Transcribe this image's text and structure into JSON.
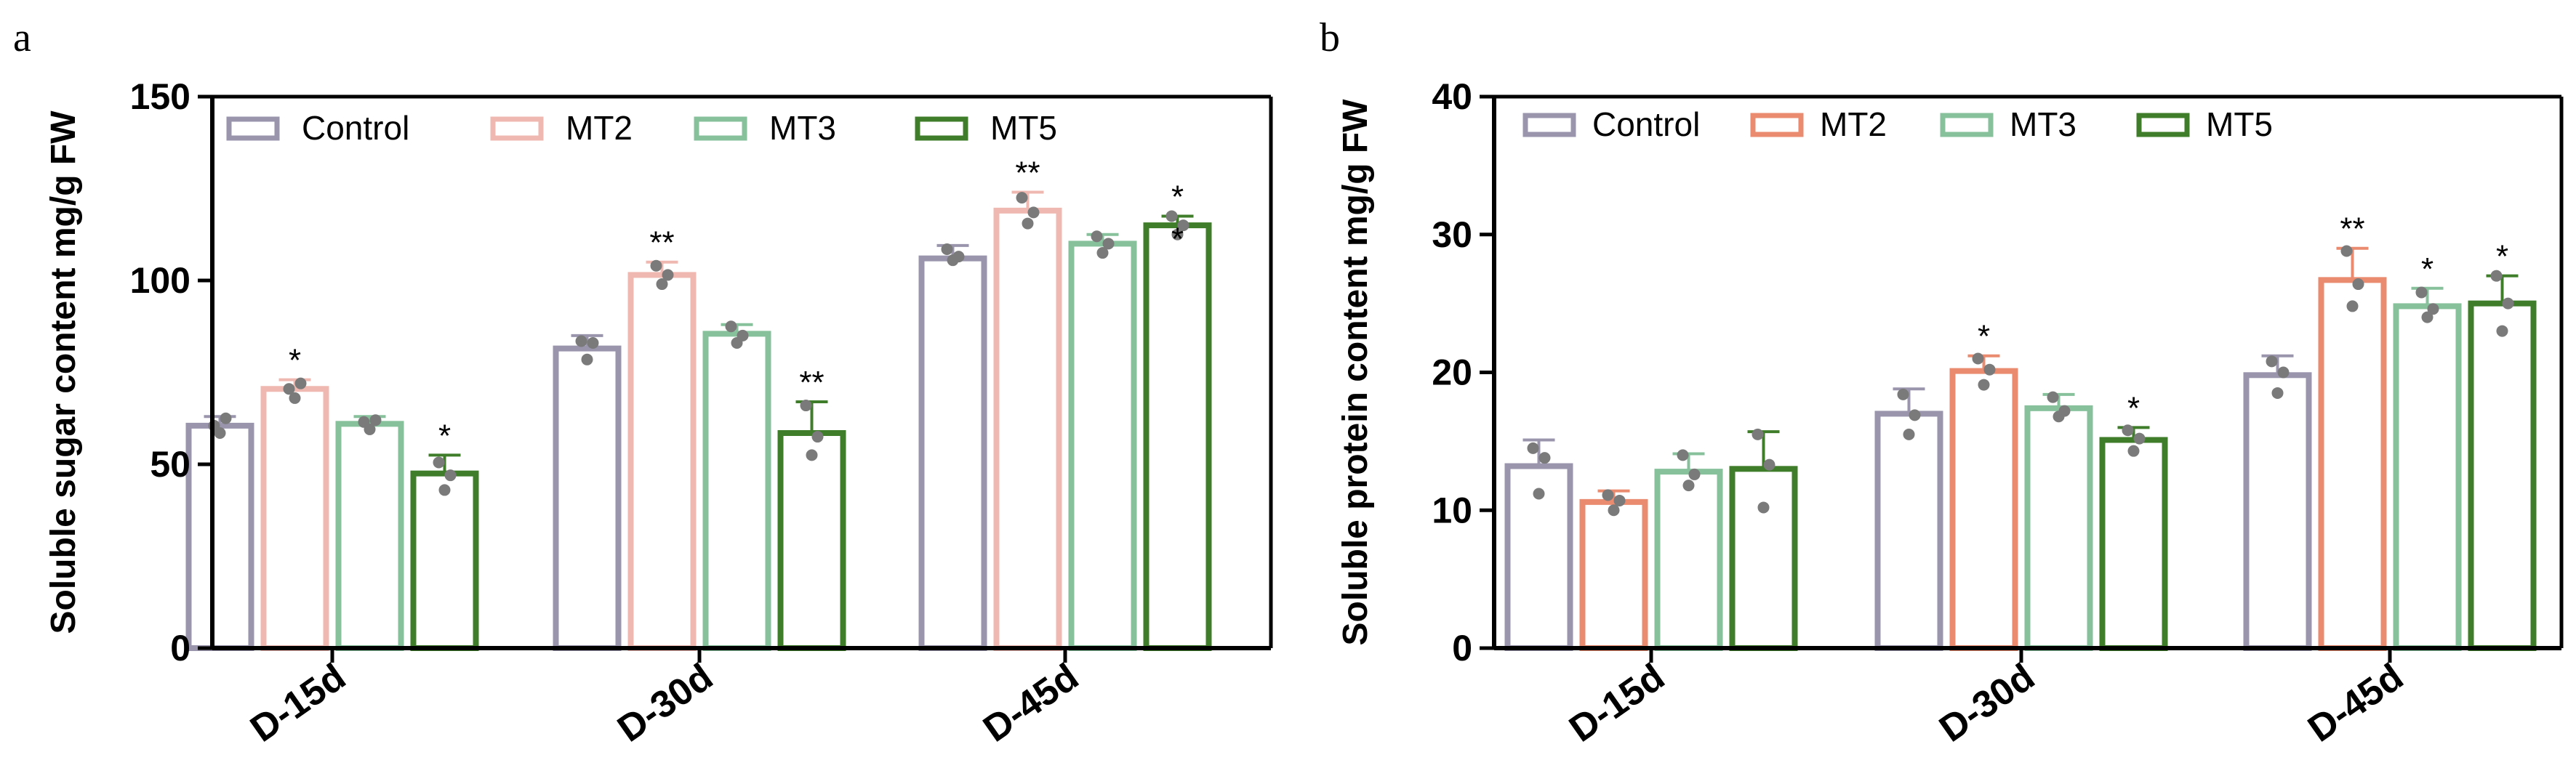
{
  "chart_data": [
    {
      "type": "bar",
      "panel_label": "a",
      "title": "",
      "xlabel": "",
      "ylabel": "Soluble  sugar content mg/g FW",
      "ylim": [
        0,
        150
      ],
      "yticks": [
        0,
        50,
        100,
        150
      ],
      "categories": [
        "D-15d",
        "D-30d",
        "D-45d"
      ],
      "legend_position": "top",
      "series": [
        {
          "name": "Control",
          "color": "#9a95ad",
          "values": [
            60.5,
            81.5,
            106
          ],
          "errors": [
            2.5,
            3.5,
            3.5
          ],
          "points": [
            [
              60.5,
              58.5,
              62.5
            ],
            [
              83.5,
              78.5,
              83.0
            ],
            [
              108.5,
              105.5,
              106.5
            ]
          ],
          "significance": [
            "",
            "",
            ""
          ]
        },
        {
          "name": "MT2",
          "color": "#efb8b0",
          "values": [
            70.5,
            101.5,
            119
          ],
          "errors": [
            2.5,
            3.5,
            5.0
          ],
          "points": [
            [
              70.5,
              68.0,
              72.0
            ],
            [
              104.0,
              99.0,
              101.5
            ],
            [
              122.5,
              115.5,
              118.5
            ]
          ],
          "significance": [
            "*",
            "**",
            "**"
          ]
        },
        {
          "name": "MT3",
          "color": "#86c19b",
          "values": [
            61,
            85.5,
            110
          ],
          "errors": [
            2.0,
            2.5,
            2.5
          ],
          "points": [
            [
              61.5,
              59.5,
              62.0
            ],
            [
              87.5,
              83.0,
              85.0
            ],
            [
              112.0,
              107.5,
              110.0
            ]
          ],
          "significance": [
            "",
            "",
            ""
          ]
        },
        {
          "name": "MT5",
          "color": "#3f7d2a",
          "values": [
            47.5,
            58.5,
            115
          ],
          "errors": [
            5.0,
            8.5,
            2.5
          ],
          "points": [
            [
              50.5,
              43.0,
              47.0
            ],
            [
              66.0,
              52.5,
              57.5
            ],
            [
              117.5,
              112.5,
              115.0
            ]
          ],
          "significance": [
            "*",
            "**",
            "*\n*"
          ]
        }
      ]
    },
    {
      "type": "bar",
      "panel_label": "b",
      "title": "",
      "xlabel": "",
      "ylabel": "Soluble protein content mg/g FW",
      "ylim": [
        0,
        40
      ],
      "yticks": [
        0,
        10,
        20,
        30,
        40
      ],
      "categories": [
        "D-15d",
        "D-30d",
        "D-45d"
      ],
      "legend_position": "top",
      "series": [
        {
          "name": "Control",
          "color": "#9a95ad",
          "values": [
            13.2,
            17,
            19.8
          ],
          "errors": [
            1.9,
            1.8,
            1.4
          ],
          "points": [
            [
              14.5,
              11.2,
              13.8
            ],
            [
              18.4,
              15.5,
              16.9
            ],
            [
              20.8,
              18.5,
              20.0
            ]
          ],
          "significance": [
            "",
            "",
            ""
          ]
        },
        {
          "name": "MT2",
          "color": "#ea8a6e",
          "values": [
            10.6,
            20.1,
            26.7
          ],
          "errors": [
            0.8,
            1.1,
            2.3
          ],
          "points": [
            [
              11.1,
              10.0,
              10.7
            ],
            [
              21.0,
              19.1,
              20.2
            ],
            [
              28.8,
              24.8,
              26.4
            ]
          ],
          "significance": [
            "",
            "*",
            "**"
          ]
        },
        {
          "name": "MT3",
          "color": "#86c19b",
          "values": [
            12.8,
            17.4,
            24.8
          ],
          "errors": [
            1.3,
            1.0,
            1.3
          ],
          "points": [
            [
              14.0,
              11.8,
              12.6
            ],
            [
              18.2,
              16.8,
              17.2
            ],
            [
              25.8,
              24.0,
              24.6
            ]
          ],
          "significance": [
            "",
            "",
            "*"
          ]
        },
        {
          "name": "MT5",
          "color": "#3f7d2a",
          "values": [
            13,
            15.1,
            25
          ],
          "errors": [
            2.7,
            0.9,
            2.0
          ],
          "points": [
            [
              15.5,
              10.2,
              13.3
            ],
            [
              15.8,
              14.3,
              15.2
            ],
            [
              27.0,
              23.0,
              25.0
            ]
          ],
          "significance": [
            "",
            "*",
            "*"
          ]
        }
      ]
    }
  ]
}
